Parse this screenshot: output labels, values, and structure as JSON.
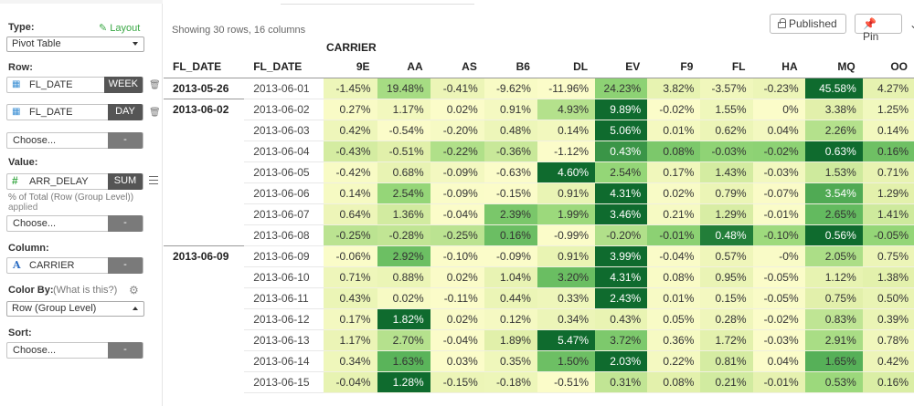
{
  "sidebar": {
    "type_label": "Type:",
    "layout_link": "Layout",
    "type_value": "Pivot Table",
    "row_label": "Row:",
    "row_fields": [
      {
        "name": "FL_DATE",
        "agg": "WEEK"
      },
      {
        "name": "FL_DATE",
        "agg": "DAY"
      }
    ],
    "choose_text": "Choose...",
    "dash": "-",
    "value_label": "Value:",
    "value_field": {
      "name": "ARR_DELAY",
      "agg": "SUM"
    },
    "applied_text": "% of Total (Row (Group Level))",
    "applied_suffix": "applied",
    "column_label": "Column:",
    "column_field": "CARRIER",
    "color_label": "Color By:",
    "color_help": "(What is this?)",
    "color_value": "Row (Group Level)",
    "sort_label": "Sort:"
  },
  "main": {
    "showing": "Showing 30 rows, 16 columns",
    "published_btn": "Published",
    "pin_btn": "Pin",
    "column_dimension": "CARRIER",
    "row_headers": [
      "FL_DATE",
      "FL_DATE"
    ],
    "carriers": [
      "9E",
      "AA",
      "AS",
      "B6",
      "DL",
      "EV",
      "F9",
      "FL",
      "HA",
      "MQ",
      "OO"
    ],
    "rows": [
      {
        "week": "2013-05-26",
        "day": "2013-06-01",
        "values": [
          "-1.45%",
          "19.48%",
          "-0.41%",
          "-9.62%",
          "-11.96%",
          "24.23%",
          "3.82%",
          "-3.57%",
          "-0.23%",
          "45.58%",
          "4.27%"
        ]
      },
      {
        "week": "2013-06-02",
        "day": "2013-06-02",
        "values": [
          "0.27%",
          "1.17%",
          "0.02%",
          "0.91%",
          "4.93%",
          "9.89%",
          "-0.02%",
          "1.55%",
          "0%",
          "3.38%",
          "1.25%"
        ]
      },
      {
        "week": "",
        "day": "2013-06-03",
        "values": [
          "0.42%",
          "-0.54%",
          "-0.20%",
          "0.48%",
          "0.14%",
          "5.06%",
          "0.01%",
          "0.62%",
          "0.04%",
          "2.26%",
          "0.14%"
        ]
      },
      {
        "week": "",
        "day": "2013-06-04",
        "values": [
          "-0.43%",
          "-0.51%",
          "-0.22%",
          "-0.36%",
          "-1.12%",
          "0.43%",
          "0.08%",
          "-0.03%",
          "-0.02%",
          "0.63%",
          "0.16%"
        ]
      },
      {
        "week": "",
        "day": "2013-06-05",
        "values": [
          "-0.42%",
          "0.68%",
          "-0.09%",
          "-0.63%",
          "4.60%",
          "2.54%",
          "0.17%",
          "1.43%",
          "-0.03%",
          "1.53%",
          "0.71%"
        ]
      },
      {
        "week": "",
        "day": "2013-06-06",
        "values": [
          "0.14%",
          "2.54%",
          "-0.09%",
          "-0.15%",
          "0.91%",
          "4.31%",
          "0.02%",
          "0.79%",
          "-0.07%",
          "3.54%",
          "1.29%"
        ]
      },
      {
        "week": "",
        "day": "2013-06-07",
        "values": [
          "0.64%",
          "1.36%",
          "-0.04%",
          "2.39%",
          "1.99%",
          "3.46%",
          "0.21%",
          "1.29%",
          "-0.01%",
          "2.65%",
          "1.41%"
        ]
      },
      {
        "week": "",
        "day": "2013-06-08",
        "values": [
          "-0.25%",
          "-0.28%",
          "-0.25%",
          "0.16%",
          "-0.99%",
          "-0.20%",
          "-0.01%",
          "0.48%",
          "-0.10%",
          "0.56%",
          "-0.05%"
        ]
      },
      {
        "week": "2013-06-09",
        "day": "2013-06-09",
        "values": [
          "-0.06%",
          "2.92%",
          "-0.10%",
          "-0.09%",
          "0.91%",
          "3.99%",
          "-0.04%",
          "0.57%",
          "-0%",
          "2.05%",
          "0.75%"
        ]
      },
      {
        "week": "",
        "day": "2013-06-10",
        "values": [
          "0.71%",
          "0.88%",
          "0.02%",
          "1.04%",
          "3.20%",
          "4.31%",
          "0.08%",
          "0.95%",
          "-0.05%",
          "1.12%",
          "1.38%"
        ]
      },
      {
        "week": "",
        "day": "2013-06-11",
        "values": [
          "0.43%",
          "0.02%",
          "-0.11%",
          "0.44%",
          "0.33%",
          "2.43%",
          "0.01%",
          "0.15%",
          "-0.05%",
          "0.75%",
          "0.50%"
        ]
      },
      {
        "week": "",
        "day": "2013-06-12",
        "values": [
          "0.17%",
          "1.82%",
          "0.02%",
          "0.12%",
          "0.34%",
          "0.43%",
          "0.05%",
          "0.28%",
          "-0.02%",
          "0.83%",
          "0.39%"
        ]
      },
      {
        "week": "",
        "day": "2013-06-13",
        "values": [
          "1.17%",
          "2.70%",
          "-0.04%",
          "1.89%",
          "5.47%",
          "3.72%",
          "0.36%",
          "1.72%",
          "-0.03%",
          "2.91%",
          "0.78%"
        ]
      },
      {
        "week": "",
        "day": "2013-06-14",
        "values": [
          "0.34%",
          "1.63%",
          "0.03%",
          "0.35%",
          "1.50%",
          "2.03%",
          "0.22%",
          "0.81%",
          "0.04%",
          "1.65%",
          "0.42%"
        ]
      },
      {
        "week": "",
        "day": "2013-06-15",
        "values": [
          "-0.04%",
          "1.28%",
          "-0.15%",
          "-0.18%",
          "-0.51%",
          "0.31%",
          "0.08%",
          "0.21%",
          "-0.01%",
          "0.53%",
          "0.16%"
        ]
      }
    ]
  },
  "colors": {
    "accent_green": "#3aa845",
    "scale_low": "#fbfcc9",
    "scale_high": "#0f6b2e"
  }
}
